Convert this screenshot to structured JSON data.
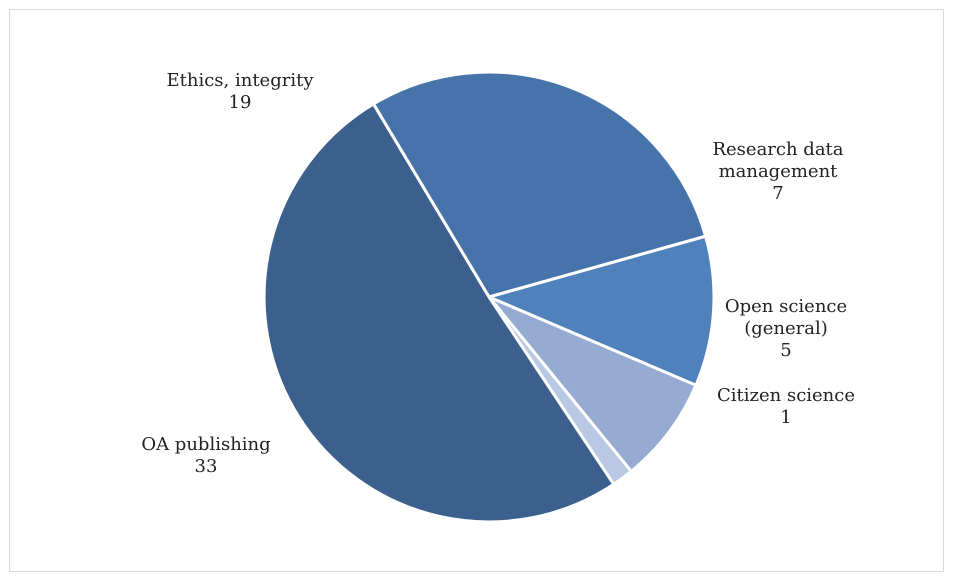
{
  "chart_data": {
    "type": "pie",
    "title": "",
    "slices": [
      {
        "label_lines": [
          "Ethics, integrity"
        ],
        "value": 19,
        "value_label": "19",
        "color": "#4673a9"
      },
      {
        "label_lines": [
          "Research data",
          "management"
        ],
        "value": 7,
        "value_label": "7",
        "color": "#4f81bd"
      },
      {
        "label_lines": [
          "Open science",
          "(general)"
        ],
        "value": 5,
        "value_label": "5",
        "color": "#95abd1"
      },
      {
        "label_lines": [
          "Citizen science"
        ],
        "value": 1,
        "value_label": "1",
        "color": "#b9c9e3"
      },
      {
        "label_lines": [
          "OA publishing"
        ],
        "value": 33,
        "value_label": "33",
        "color": "#3c608d"
      }
    ],
    "legend": "none",
    "data_labels": "category name and value"
  }
}
